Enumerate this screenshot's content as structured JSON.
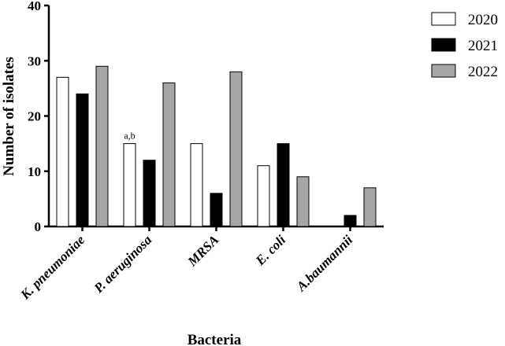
{
  "chart_data": {
    "type": "bar",
    "title": "",
    "xlabel": "Bacteria",
    "ylabel": "Number of isolates",
    "ylim": [
      0,
      40
    ],
    "yticks": [
      0,
      10,
      20,
      30,
      40
    ],
    "grid": false,
    "legend_position": "top-right",
    "categories": [
      "K. pneumoniae",
      "P. aeruginosa",
      "MRSA",
      "E. coli",
      "A.baumannii"
    ],
    "series": [
      {
        "name": "2020",
        "color": "#ffffff",
        "values": [
          27,
          15,
          15,
          11,
          0
        ]
      },
      {
        "name": "2021",
        "color": "#000000",
        "values": [
          24,
          12,
          6,
          15,
          2
        ]
      },
      {
        "name": "2022",
        "color": "#a6a6a6",
        "values": [
          29,
          26,
          28,
          9,
          7
        ]
      }
    ],
    "annotations": [
      {
        "text": "a,b",
        "category": "P. aeruginosa",
        "series": "2020"
      }
    ]
  }
}
